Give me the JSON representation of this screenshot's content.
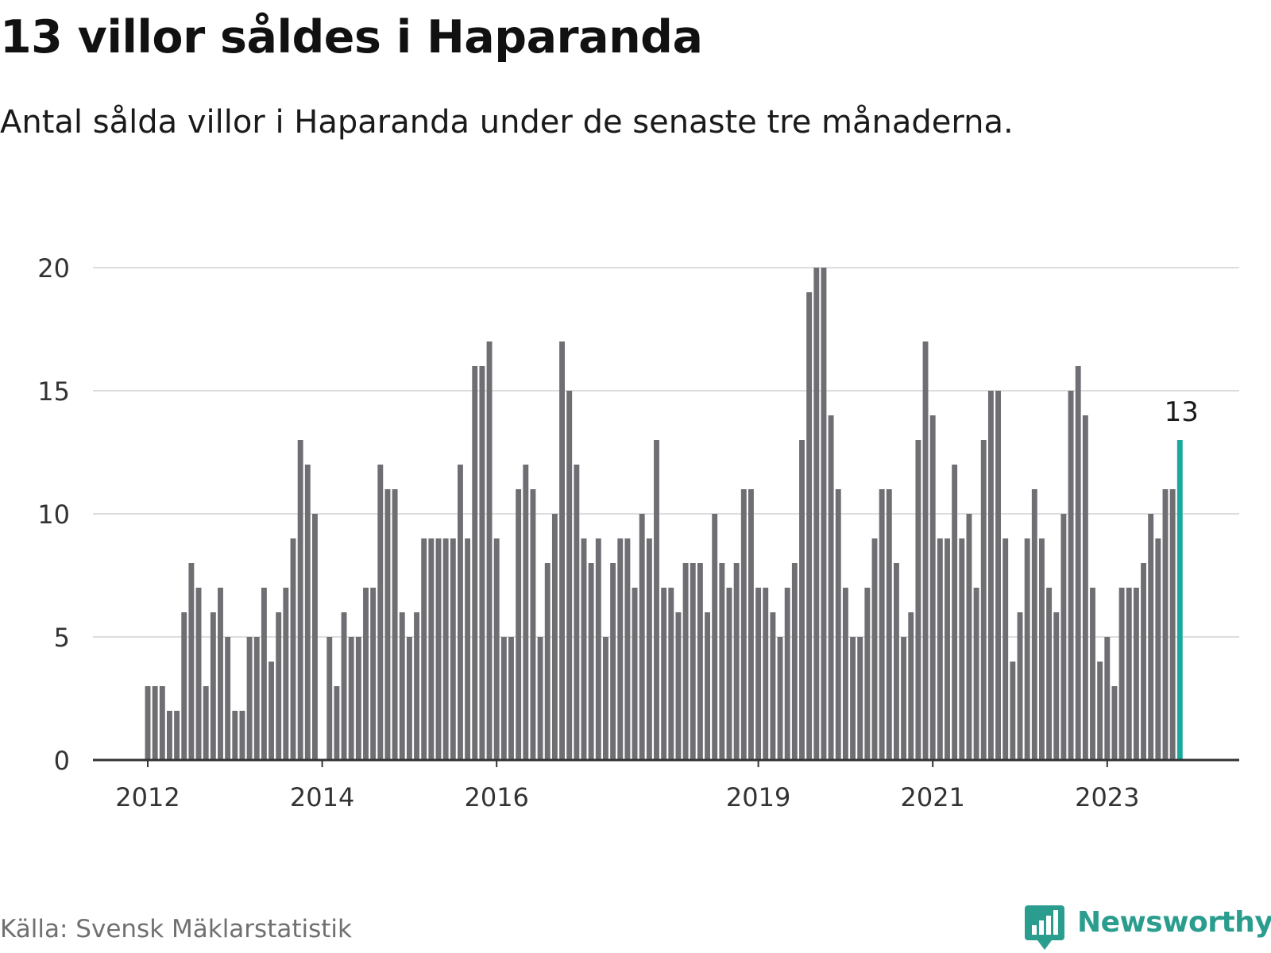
{
  "header": {
    "title": "13 villor såldes i Haparanda",
    "subtitle": "Antal sålda villor i Haparanda under de senaste tre månaderna."
  },
  "footer": {
    "source": "Källa: Svensk Mäklarstatistik",
    "brand": "Newsworthy",
    "brand_icon": "newsworthy-logo-icon"
  },
  "colors": {
    "bar": "#6f6e73",
    "highlight": "#1aa99a",
    "grid": "#dddddd",
    "axis": "#333333",
    "brand": "#2a9d8f"
  },
  "chart_data": {
    "type": "bar",
    "title": "13 villor såldes i Haparanda",
    "xlabel": "",
    "ylabel": "",
    "ylim": [
      0,
      20
    ],
    "yticks": [
      0,
      5,
      10,
      15,
      20
    ],
    "grid": true,
    "x_tick_labels": [
      {
        "label": "2012",
        "index": 0
      },
      {
        "label": "2014",
        "index": 24
      },
      {
        "label": "2016",
        "index": 48
      },
      {
        "label": "2019",
        "index": 84
      },
      {
        "label": "2021",
        "index": 108
      },
      {
        "label": "2023",
        "index": 132
      }
    ],
    "values": [
      3,
      3,
      3,
      2,
      2,
      6,
      8,
      7,
      3,
      6,
      7,
      5,
      2,
      2,
      5,
      5,
      7,
      4,
      6,
      7,
      9,
      13,
      12,
      10,
      0,
      5,
      3,
      6,
      5,
      5,
      7,
      7,
      12,
      11,
      11,
      6,
      5,
      6,
      9,
      9,
      9,
      9,
      9,
      12,
      9,
      16,
      16,
      17,
      9,
      5,
      5,
      11,
      12,
      11,
      5,
      8,
      10,
      17,
      15,
      12,
      9,
      8,
      9,
      5,
      8,
      9,
      9,
      7,
      10,
      9,
      13,
      7,
      7,
      6,
      8,
      8,
      8,
      6,
      10,
      8,
      7,
      8,
      11,
      11,
      7,
      7,
      6,
      5,
      7,
      8,
      13,
      19,
      20,
      20,
      14,
      11,
      7,
      5,
      5,
      7,
      9,
      11,
      11,
      8,
      5,
      6,
      13,
      17,
      14,
      9,
      9,
      12,
      9,
      10,
      7,
      13,
      15,
      15,
      9,
      4,
      6,
      9,
      11,
      9,
      7,
      6,
      10,
      15,
      16,
      14,
      7,
      4,
      5,
      3,
      7,
      7,
      7,
      8,
      10,
      9,
      11,
      11,
      13
    ],
    "highlight_index": 142,
    "annotation": "13"
  }
}
